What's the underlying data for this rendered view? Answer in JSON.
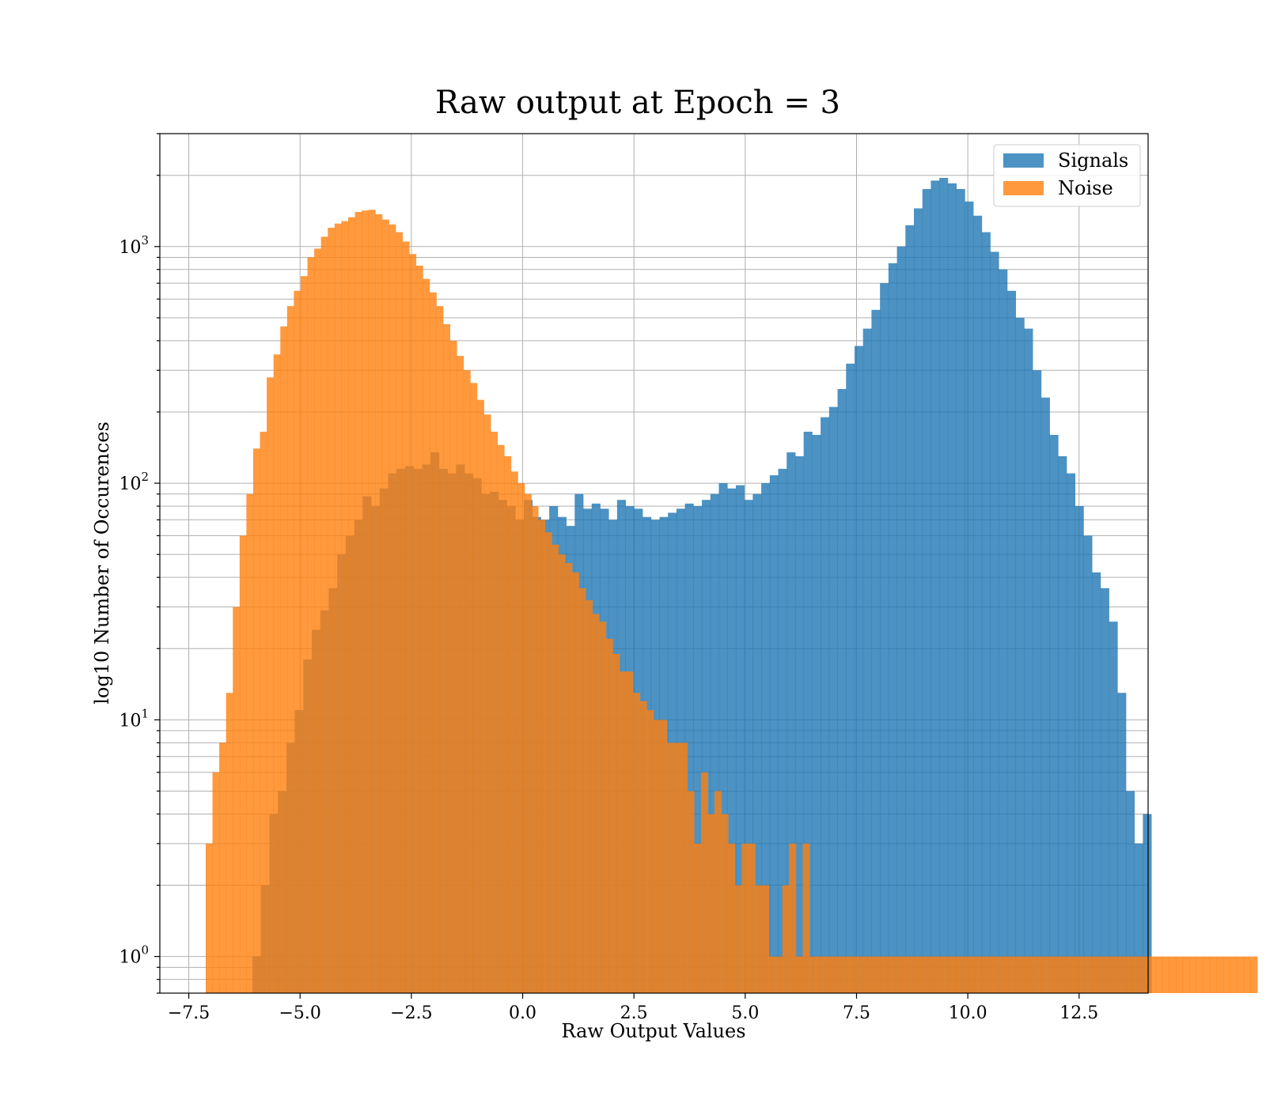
{
  "chart_data": {
    "type": "histogram",
    "title": "Raw output at Epoch = 3",
    "xlabel": "Raw Output Values",
    "ylabel": "log10 Number of Occurences",
    "xlim": [
      -8.15,
      14.05
    ],
    "ylim": [
      0.7,
      3000
    ],
    "yscale": "log",
    "grid": true,
    "legend_position": "top-right",
    "x_ticks": [
      {
        "value": -7.5,
        "label": "−7.5"
      },
      {
        "value": -5.0,
        "label": "−5.0"
      },
      {
        "value": -2.5,
        "label": "−2.5"
      },
      {
        "value": 0.0,
        "label": "0.0"
      },
      {
        "value": 2.5,
        "label": "2.5"
      },
      {
        "value": 5.0,
        "label": "5.0"
      },
      {
        "value": 7.5,
        "label": "7.5"
      },
      {
        "value": 10.0,
        "label": "10.0"
      },
      {
        "value": 12.5,
        "label": "12.5"
      }
    ],
    "y_ticks": [
      {
        "value": 1,
        "base": "10",
        "exp": "0"
      },
      {
        "value": 10,
        "base": "10",
        "exp": "1"
      },
      {
        "value": 100,
        "base": "10",
        "exp": "2"
      },
      {
        "value": 1000,
        "base": "10",
        "exp": "3"
      }
    ],
    "series": [
      {
        "name": "Signals",
        "color": "#1f77b4",
        "alpha": 0.8,
        "bin_start": -6.07,
        "bin_width": 0.1905,
        "values": [
          1,
          2,
          4,
          5,
          8,
          11,
          18,
          24,
          29,
          36,
          50,
          60,
          70,
          88,
          80,
          95,
          110,
          115,
          118,
          115,
          120,
          135,
          115,
          110,
          120,
          110,
          105,
          90,
          92,
          85,
          80,
          70,
          85,
          72,
          70,
          80,
          72,
          66,
          90,
          78,
          82,
          78,
          70,
          85,
          80,
          78,
          72,
          70,
          72,
          75,
          78,
          82,
          80,
          85,
          90,
          100,
          95,
          98,
          85,
          90,
          100,
          108,
          115,
          135,
          130,
          165,
          160,
          190,
          210,
          250,
          320,
          380,
          450,
          540,
          700,
          850,
          1000,
          1230,
          1450,
          1750,
          1900,
          1950,
          1850,
          1750,
          1550,
          1350,
          1150,
          950,
          800,
          650,
          500,
          450,
          300,
          230,
          160,
          130,
          110,
          80,
          60,
          42,
          36,
          26,
          13,
          5,
          3,
          4
        ]
      },
      {
        "name": "Noise",
        "color": "#ff7f0e",
        "alpha": 0.8,
        "bin_start": -7.12,
        "bin_width": 0.1524,
        "values": [
          3,
          6,
          8,
          13,
          30,
          60,
          90,
          140,
          165,
          280,
          350,
          460,
          560,
          650,
          750,
          900,
          980,
          1100,
          1200,
          1250,
          1280,
          1330,
          1400,
          1420,
          1430,
          1370,
          1300,
          1240,
          1150,
          1050,
          930,
          830,
          730,
          640,
          560,
          470,
          400,
          345,
          300,
          265,
          225,
          195,
          165,
          145,
          130,
          112,
          100,
          90,
          80,
          70,
          62,
          55,
          50,
          46,
          42,
          36,
          32,
          28,
          26,
          22,
          19,
          16,
          16,
          13,
          12,
          11,
          10,
          10,
          8,
          8,
          8,
          5,
          3,
          6,
          4,
          5,
          4,
          3,
          2,
          3,
          3,
          2,
          2,
          1,
          1,
          2,
          3,
          1,
          3,
          1,
          1,
          1,
          1,
          1,
          1,
          1,
          1,
          1,
          1,
          1,
          1,
          1,
          1,
          1,
          1,
          1,
          1,
          1,
          1,
          1,
          1,
          1,
          1,
          1,
          1,
          1,
          1,
          1,
          1,
          1,
          1,
          1,
          1,
          1,
          1,
          1,
          1,
          1,
          1,
          1,
          1,
          1,
          1,
          1,
          1,
          1,
          1,
          1,
          1,
          1,
          1,
          1,
          1,
          1,
          1,
          1,
          1,
          1,
          1,
          1,
          1,
          1,
          1,
          1,
          1
        ]
      }
    ]
  }
}
